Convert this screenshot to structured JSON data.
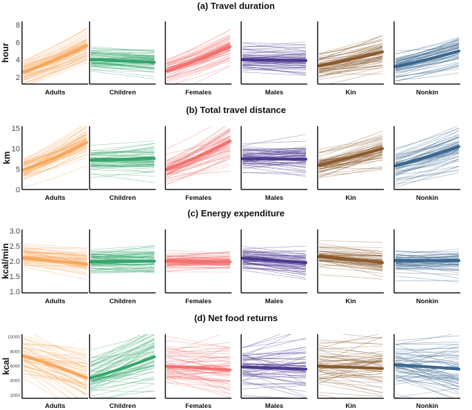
{
  "chart_data": [
    {
      "id": "a",
      "type": "line",
      "title": "(a) Travel duration",
      "ylabel": "hour",
      "ylim": [
        1.2,
        8.4
      ],
      "yticks": [
        2,
        4,
        6,
        8
      ],
      "x": [
        0,
        1
      ],
      "panels": [
        {
          "name": "Adults",
          "color": "#f7a75c",
          "mean": [
            2.6,
            5.6
          ],
          "spread": 0.8,
          "slope_sd": 0.5
        },
        {
          "name": "Children",
          "color": "#34a66b",
          "mean": [
            4.0,
            3.7
          ],
          "spread": 0.7,
          "slope_sd": 0.4
        },
        {
          "name": "Females",
          "color": "#f2716f",
          "mean": [
            2.7,
            5.5
          ],
          "spread": 0.8,
          "slope_sd": 0.5
        },
        {
          "name": "Males",
          "color": "#4c3990",
          "mean": [
            4.0,
            3.9
          ],
          "spread": 0.7,
          "slope_sd": 0.4
        },
        {
          "name": "Kin",
          "color": "#8b5a2b",
          "mean": [
            3.3,
            4.9
          ],
          "spread": 0.8,
          "slope_sd": 0.5
        },
        {
          "name": "Nonkin",
          "color": "#3b6890",
          "mean": [
            3.2,
            5.0
          ],
          "spread": 0.8,
          "slope_sd": 0.5
        }
      ]
    },
    {
      "id": "b",
      "type": "line",
      "title": "(b) Total travel distance",
      "ylabel": "km",
      "ylim": [
        0,
        15.5
      ],
      "yticks": [
        0,
        5,
        10,
        15
      ],
      "x": [
        0,
        1
      ],
      "panels": [
        {
          "name": "Adults",
          "color": "#f7a75c",
          "mean": [
            4.8,
            11.5
          ],
          "spread": 1.6,
          "slope_sd": 1.5
        },
        {
          "name": "Children",
          "color": "#34a66b",
          "mean": [
            7.2,
            7.6
          ],
          "spread": 1.5,
          "slope_sd": 1.0
        },
        {
          "name": "Females",
          "color": "#f2716f",
          "mean": [
            4.9,
            11.8
          ],
          "spread": 1.6,
          "slope_sd": 1.6
        },
        {
          "name": "Males",
          "color": "#4c3990",
          "mean": [
            7.5,
            7.4
          ],
          "spread": 1.6,
          "slope_sd": 1.4
        },
        {
          "name": "Kin",
          "color": "#8b5a2b",
          "mean": [
            6.0,
            10.0
          ],
          "spread": 1.8,
          "slope_sd": 1.6
        },
        {
          "name": "Nonkin",
          "color": "#3b6890",
          "mean": [
            5.8,
            10.5
          ],
          "spread": 1.8,
          "slope_sd": 1.6
        }
      ]
    },
    {
      "id": "c",
      "type": "line",
      "title": "(c) Energy expenditure",
      "ylabel": "kcal/min",
      "ylim": [
        0.95,
        3.05
      ],
      "yticks": [
        1.0,
        1.5,
        2.0,
        2.5,
        3.0
      ],
      "x": [
        0,
        1
      ],
      "panels": [
        {
          "name": "Adults",
          "color": "#f7a75c",
          "mean": [
            2.1,
            1.9
          ],
          "spread": 0.2,
          "slope_sd": 0.12
        },
        {
          "name": "Children",
          "color": "#34a66b",
          "mean": [
            1.98,
            2.0
          ],
          "spread": 0.18,
          "slope_sd": 0.12
        },
        {
          "name": "Females",
          "color": "#f2716f",
          "mean": [
            2.0,
            1.98
          ],
          "spread": 0.16,
          "slope_sd": 0.1
        },
        {
          "name": "Males",
          "color": "#4c3990",
          "mean": [
            2.1,
            1.95
          ],
          "spread": 0.18,
          "slope_sd": 0.12
        },
        {
          "name": "Kin",
          "color": "#8b5a2b",
          "mean": [
            2.15,
            1.95
          ],
          "spread": 0.2,
          "slope_sd": 0.12
        },
        {
          "name": "Nonkin",
          "color": "#3b6890",
          "mean": [
            2.02,
            2.02
          ],
          "spread": 0.18,
          "slope_sd": 0.12
        }
      ]
    },
    {
      "id": "d",
      "type": "line",
      "title": "(d) Net food returns",
      "ylabel": "kcal",
      "ylim": [
        1600,
        10400
      ],
      "yticks": [
        2000,
        4000,
        6000,
        8000,
        10000
      ],
      "x": [
        0,
        1
      ],
      "panels": [
        {
          "name": "Adults",
          "color": "#f7a75c",
          "mean": [
            7400,
            4400
          ],
          "spread": 1400,
          "slope_sd": 1500
        },
        {
          "name": "Children",
          "color": "#34a66b",
          "mean": [
            4400,
            7300
          ],
          "spread": 1400,
          "slope_sd": 1500
        },
        {
          "name": "Females",
          "color": "#f2716f",
          "mean": [
            6000,
            5500
          ],
          "spread": 1500,
          "slope_sd": 1400
        },
        {
          "name": "Males",
          "color": "#4c3990",
          "mean": [
            5900,
            5600
          ],
          "spread": 1600,
          "slope_sd": 1500
        },
        {
          "name": "Kin",
          "color": "#8b5a2b",
          "mean": [
            6000,
            5700
          ],
          "spread": 1600,
          "slope_sd": 1500
        },
        {
          "name": "Nonkin",
          "color": "#3b6890",
          "mean": [
            6200,
            5600
          ],
          "spread": 1500,
          "slope_sd": 1500
        }
      ]
    }
  ]
}
